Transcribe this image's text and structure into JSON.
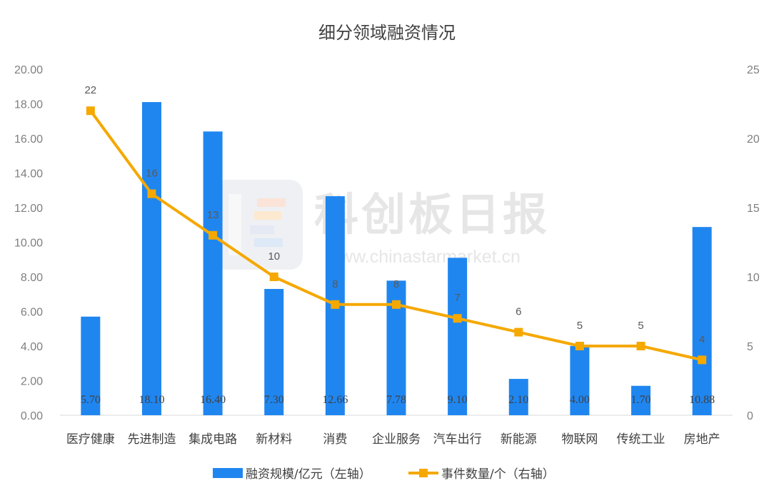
{
  "chart_data": {
    "type": "bar+line",
    "title": "细分领域融资情况",
    "categories": [
      "医疗健康",
      "先进制造",
      "集成电路",
      "新材料",
      "消费",
      "企业服务",
      "汽车出行",
      "新能源",
      "物联网",
      "传统工业",
      "房地产"
    ],
    "series": [
      {
        "name": "融资规模/亿元（左轴）",
        "type": "bar",
        "axis": "left",
        "color": "#1f86f0",
        "values": [
          5.7,
          18.1,
          16.4,
          7.3,
          12.66,
          7.78,
          9.1,
          2.1,
          4.0,
          1.7,
          10.88
        ],
        "labels": [
          "5.70",
          "18.10",
          "16.40",
          "7.30",
          "12.66",
          "7.78",
          "9.10",
          "2.10",
          "4.00",
          "1.70",
          "10.88"
        ]
      },
      {
        "name": "事件数量/个（右轴）",
        "type": "line",
        "axis": "right",
        "color": "#f5a800",
        "values": [
          22,
          16,
          13,
          10,
          8,
          8,
          7,
          6,
          5,
          5,
          4
        ],
        "labels": [
          "22",
          "16",
          "13",
          "10",
          "8",
          "8",
          "7",
          "6",
          "5",
          "5",
          "4"
        ]
      }
    ],
    "left_axis": {
      "ylim": [
        0,
        20
      ],
      "ticks": [
        "0.00",
        "2.00",
        "4.00",
        "6.00",
        "8.00",
        "10.00",
        "12.00",
        "14.00",
        "16.00",
        "18.00",
        "20.00"
      ]
    },
    "right_axis": {
      "ylim": [
        0,
        25
      ],
      "ticks": [
        "0",
        "5",
        "10",
        "15",
        "20",
        "25"
      ]
    },
    "grid": false,
    "legend_position": "bottom"
  },
  "watermark": {
    "text": "科创板日报",
    "url": "www.chinastarmarket.cn"
  }
}
